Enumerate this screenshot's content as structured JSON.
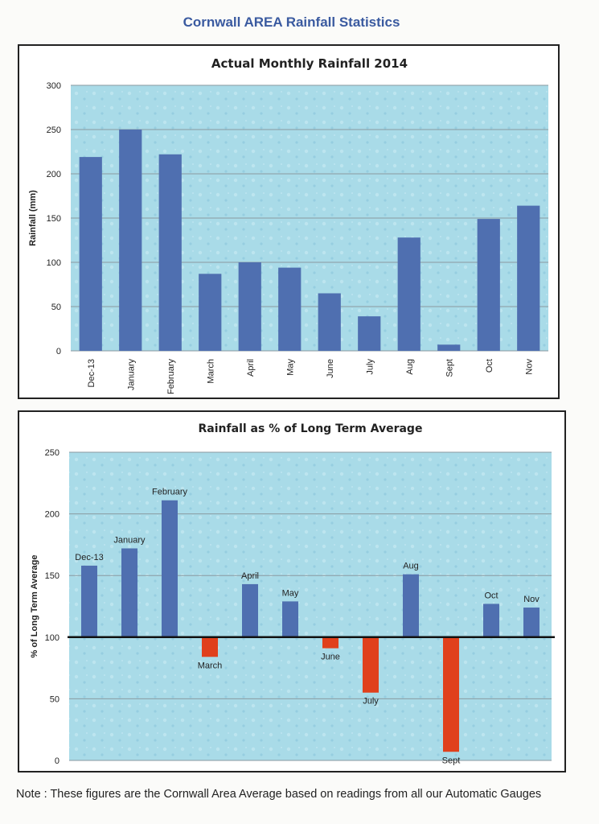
{
  "page": {
    "title": "Cornwall AREA Rainfall Statistics",
    "note": "Note : These figures are the Cornwall Area Average based on readings from all our Automatic Gauges"
  },
  "colors": {
    "bar_blue": "#4f6fb0",
    "bar_red": "#e0401c",
    "plot_bg": "#a9dbe8",
    "title_blue": "#3a5aa0"
  },
  "chart_data": [
    {
      "type": "bar",
      "title": "Actual Monthly Rainfall 2014",
      "xlabel": "",
      "ylabel": "Rainfall (mm)",
      "ylim": [
        0,
        300
      ],
      "yticks": [
        0,
        50,
        100,
        150,
        200,
        250,
        300
      ],
      "grid": true,
      "categories": [
        "Dec-13",
        "January",
        "February",
        "March",
        "April",
        "May",
        "June",
        "July",
        "Aug",
        "Sept",
        "Oct",
        "Nov"
      ],
      "values": [
        219,
        250,
        222,
        87,
        100,
        94,
        65,
        39,
        128,
        7,
        149,
        164
      ]
    },
    {
      "type": "bar",
      "title": "Rainfall as % of  Long Term Average",
      "xlabel": "",
      "ylabel": "% of Long Term Average",
      "ylim": [
        0,
        250
      ],
      "yticks": [
        0,
        50,
        100,
        150,
        200,
        250
      ],
      "baseline": 100,
      "grid": true,
      "categories": [
        "Dec-13",
        "January",
        "February",
        "March",
        "April",
        "May",
        "June",
        "July",
        "Aug",
        "Sept",
        "Oct",
        "Nov"
      ],
      "values": [
        158,
        172,
        211,
        84,
        143,
        129,
        91,
        55,
        151,
        7,
        127,
        124
      ]
    }
  ]
}
